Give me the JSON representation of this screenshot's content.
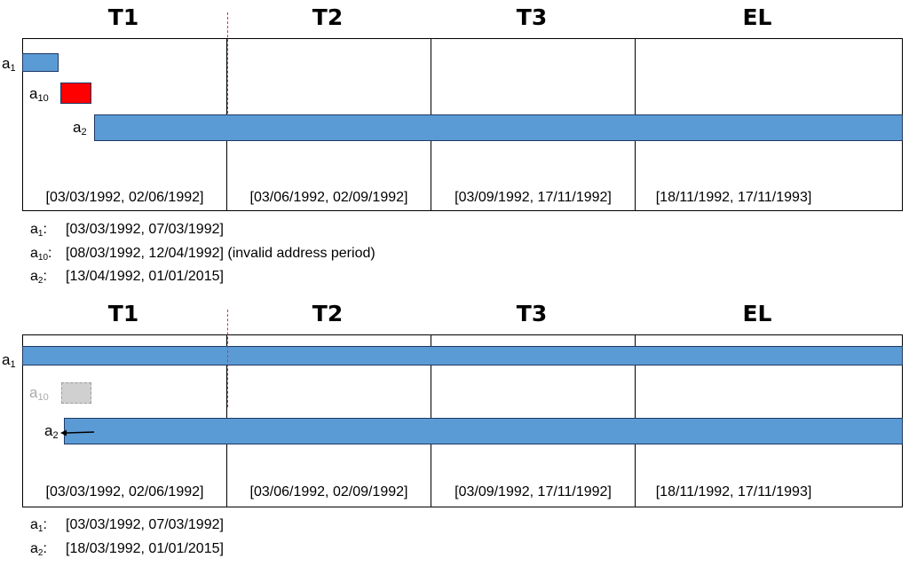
{
  "top": {
    "headers": [
      "T1",
      "T2",
      "T3",
      "EL"
    ],
    "ranges": [
      "[03/03/1992, 02/06/1992]",
      "[03/06/1992, 02/09/1992]",
      "[03/09/1992, 17/11/1992]",
      "[18/11/1992, 17/11/1993]"
    ],
    "bars": [
      {
        "label": "a",
        "sub": "1",
        "start": "03/03/1992",
        "end": "07/03/1992",
        "color": "#5b9bd5"
      },
      {
        "label": "a",
        "sub": "10",
        "start": "08/03/1992",
        "end": "12/04/1992",
        "color": "#ff0000"
      },
      {
        "label": "a",
        "sub": "2",
        "start": "13/04/1992",
        "end": "01/01/2015",
        "color": "#5b9bd5"
      }
    ],
    "legend": [
      {
        "key": "a",
        "sub": "1",
        "text": "[03/03/1992, 07/03/1992]"
      },
      {
        "key": "a",
        "sub": "10",
        "text": "[08/03/1992, 12/04/1992] (invalid address period)"
      },
      {
        "key": "a",
        "sub": "2",
        "text": "[13/04/1992, 01/01/2015]"
      }
    ]
  },
  "bottom": {
    "headers": [
      "T1",
      "T2",
      "T3",
      "EL"
    ],
    "ranges": [
      "[03/03/1992, 02/06/1992]",
      "[03/06/1992, 02/09/1992]",
      "[03/09/1992, 17/11/1992]",
      "[18/11/1992, 17/11/1993]"
    ],
    "bars": [
      {
        "label": "a",
        "sub": "1",
        "color": "#5b9bd5"
      },
      {
        "label": "a",
        "sub": "10",
        "color": "#d0d0d0"
      },
      {
        "label": "a",
        "sub": "2",
        "color": "#5b9bd5"
      }
    ],
    "legend": [
      {
        "key": "a",
        "sub": "1",
        "text": "[03/03/1992, 07/03/1992]"
      },
      {
        "key": "a",
        "sub": "2",
        "text": "[18/03/1992, 01/01/2015]"
      }
    ]
  },
  "colors": {
    "bar": "#5b9bd5",
    "invalid": "#ff0000",
    "removed": "#d0d0d0",
    "cutoff_line": "#e0312b"
  }
}
